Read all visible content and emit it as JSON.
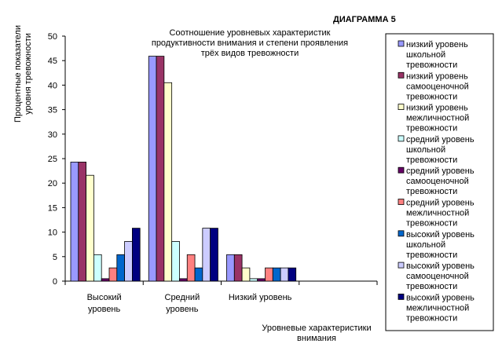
{
  "chart_data": {
    "type": "bar",
    "label": "ДИАГРАММА 5",
    "title_lines": [
      "Соотношение уровневых характеристик",
      "продуктивности внимания и степени проявления",
      "трёх видов тревожности"
    ],
    "ylabel_lines": [
      "Процентные показатели",
      "уровня тревожности"
    ],
    "xlabel_lines": [
      "Уровневые характеристики",
      "внимания"
    ],
    "ylim": [
      0,
      50
    ],
    "yticks": [
      0,
      5,
      10,
      15,
      20,
      25,
      30,
      35,
      40,
      45,
      50
    ],
    "categories": [
      [
        "Высокий",
        "уровень"
      ],
      [
        "Средний",
        "уровень"
      ],
      [
        "Низкий уровень"
      ],
      [
        ""
      ]
    ],
    "legend_position": "right",
    "series": [
      {
        "name_lines": [
          "низкий уровень",
          "школьной",
          "тревожности"
        ],
        "color": "#9999FF",
        "values": [
          24.3,
          45.9,
          5.4,
          null
        ]
      },
      {
        "name_lines": [
          "низкий уровень",
          "самооценочной",
          "тревожности"
        ],
        "color": "#993366",
        "values": [
          24.3,
          45.9,
          5.4,
          null
        ]
      },
      {
        "name_lines": [
          "низкий уровень",
          "межличностной",
          "тревожности"
        ],
        "color": "#FFFFCC",
        "values": [
          21.6,
          40.5,
          2.7,
          null
        ]
      },
      {
        "name_lines": [
          "средний уровень",
          "школьной",
          "тревожности"
        ],
        "color": "#CCFFFF",
        "values": [
          5.4,
          8.1,
          0.5,
          null
        ]
      },
      {
        "name_lines": [
          "средний уровень",
          "самооценочной",
          "тревожности"
        ],
        "color": "#660066",
        "values": [
          0.5,
          0.5,
          0.5,
          null
        ]
      },
      {
        "name_lines": [
          "средний уровень",
          "межличностной",
          "тревожности"
        ],
        "color": "#FF8080",
        "values": [
          2.7,
          5.4,
          2.7,
          null
        ]
      },
      {
        "name_lines": [
          "высокий уровень",
          "школьной",
          "тревожности"
        ],
        "color": "#0066CC",
        "values": [
          5.4,
          2.7,
          2.7,
          null
        ]
      },
      {
        "name_lines": [
          "высокий уровень",
          "самооценочной",
          "тревожности"
        ],
        "color": "#CCCCFF",
        "values": [
          8.1,
          10.8,
          2.7,
          null
        ]
      },
      {
        "name_lines": [
          "высокий уровень",
          "межличностной",
          "тревожности"
        ],
        "color": "#000080",
        "values": [
          10.8,
          10.8,
          2.7,
          null
        ]
      }
    ]
  }
}
